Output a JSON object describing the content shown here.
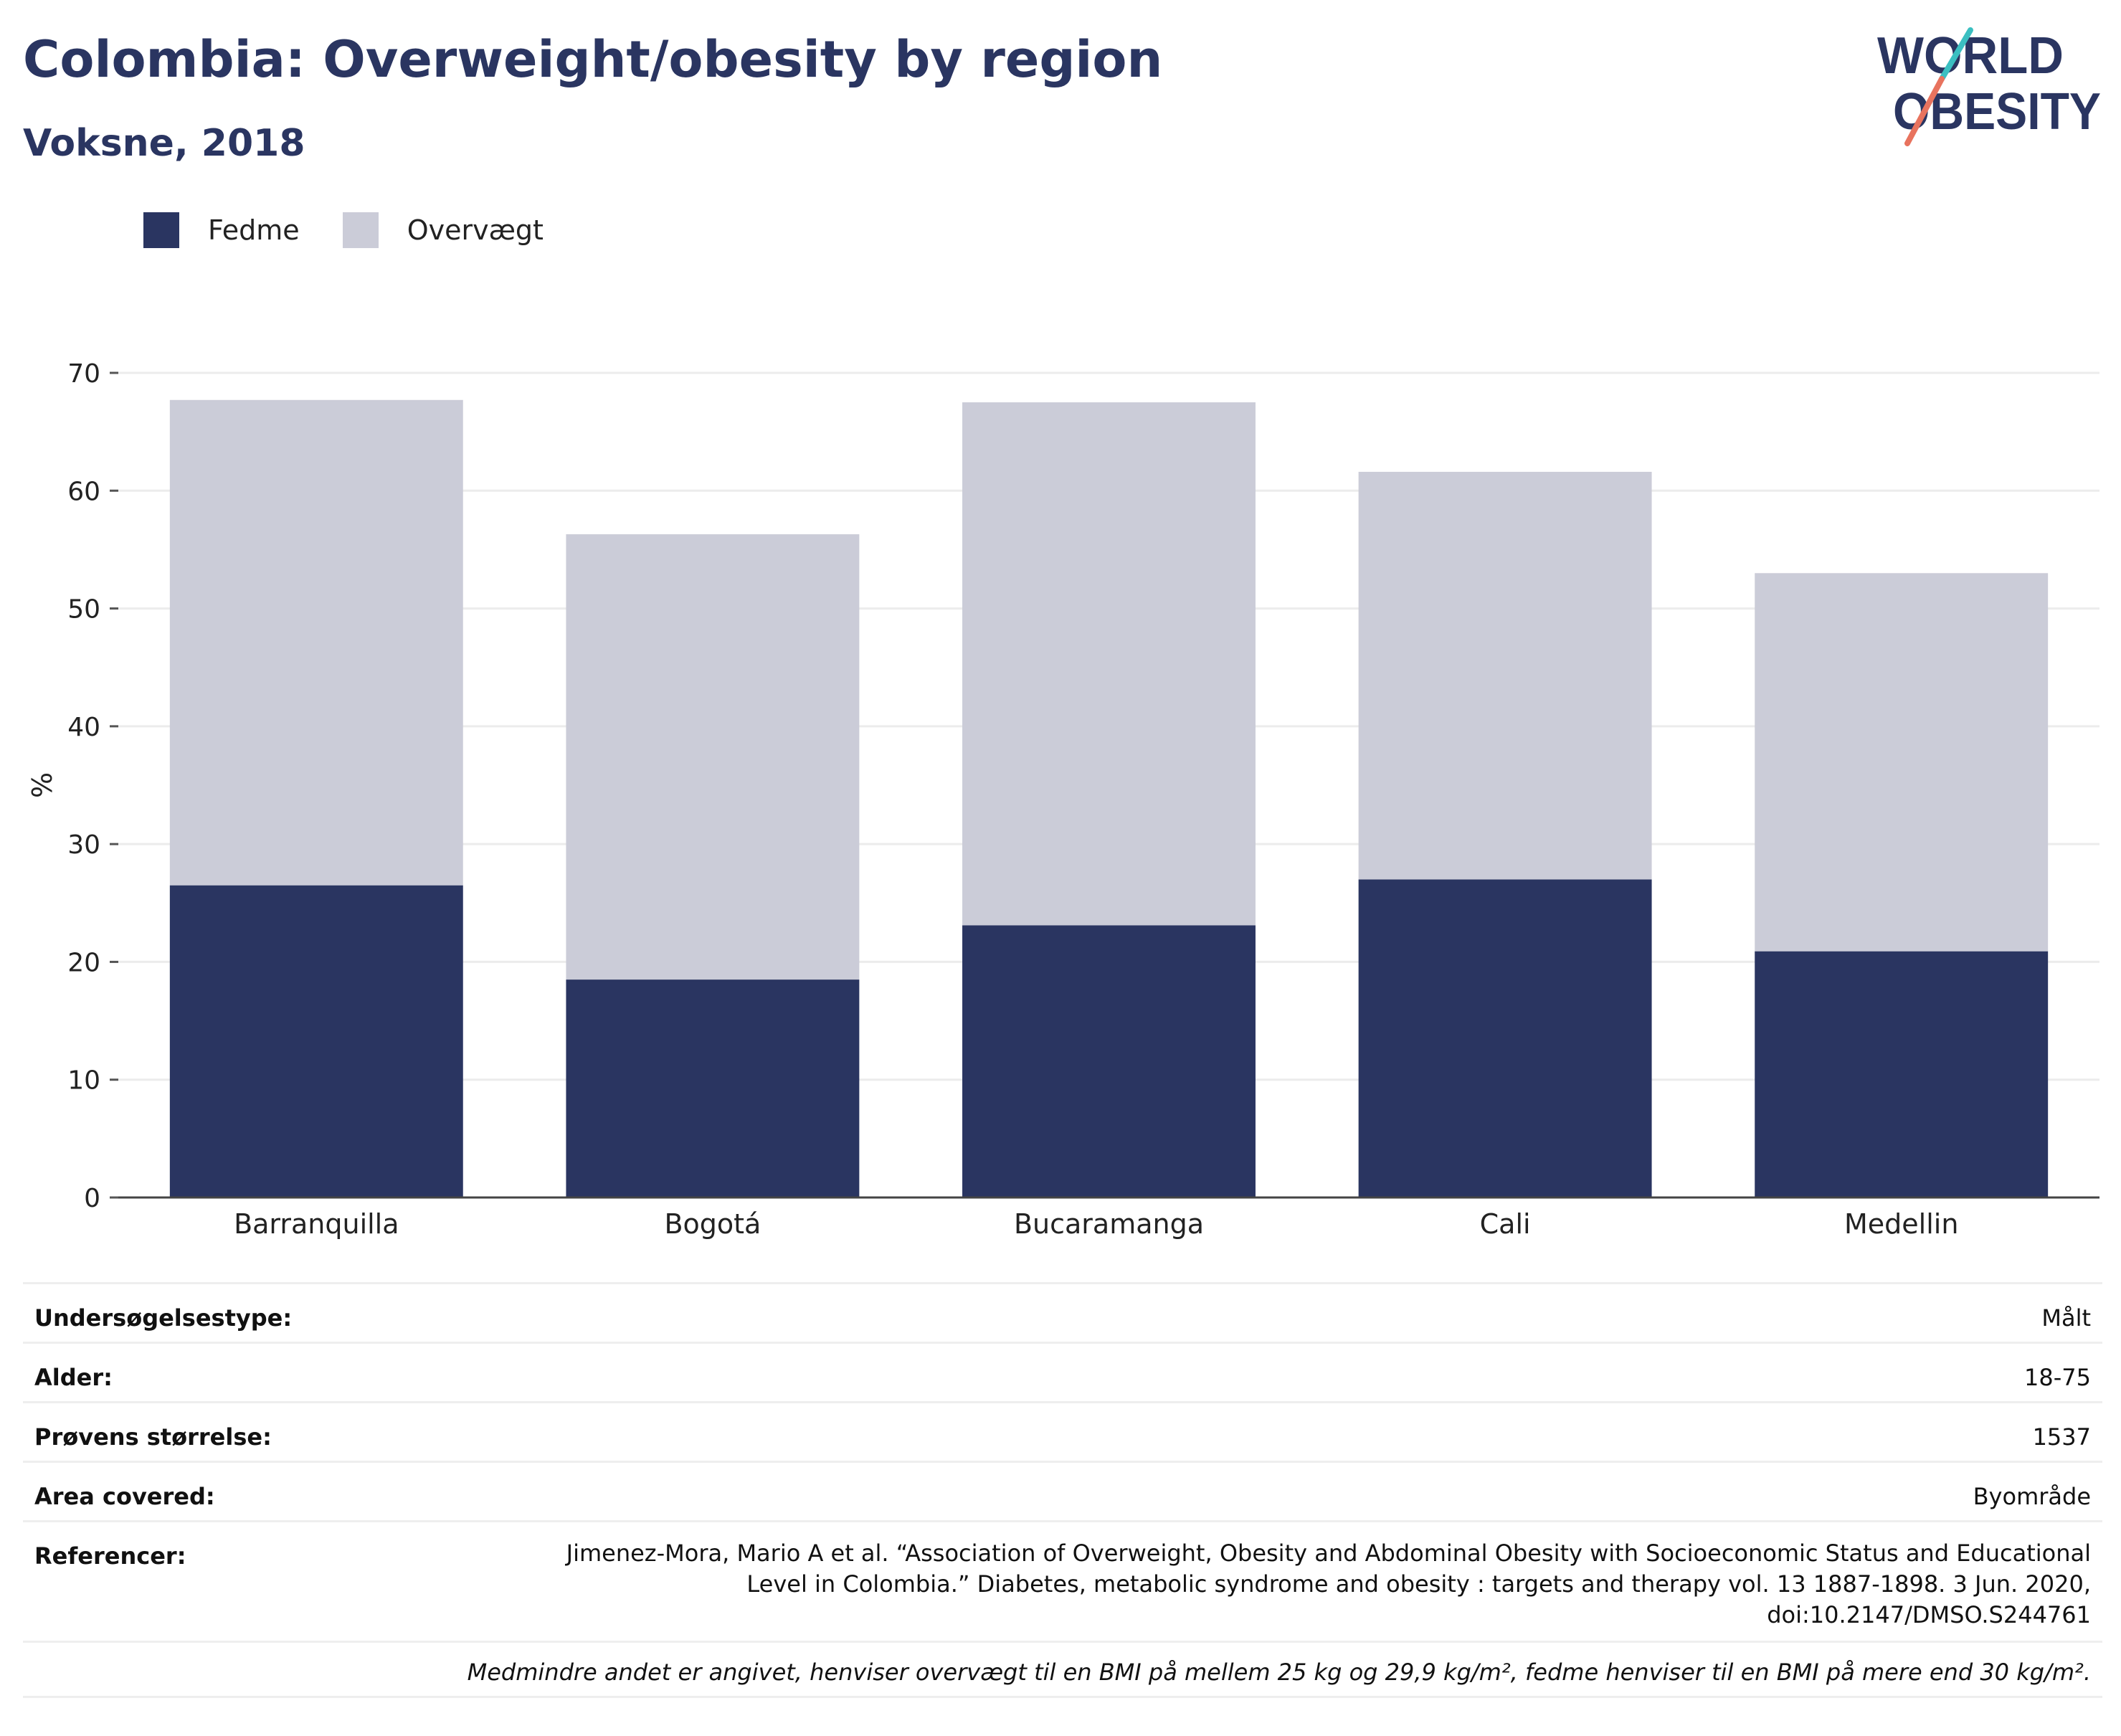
{
  "title": "Colombia: Overweight/obesity by region",
  "subtitle": "Voksne, 2018",
  "logo": {
    "line1": "WORLD",
    "line2": "OBESITY"
  },
  "colors": {
    "fedme": "#2a3561",
    "overvaegt": "#cbccd8",
    "title": "#2a3561",
    "logo_teal": "#3bbfc1",
    "logo_coral": "#e8735e"
  },
  "chart_data": {
    "type": "bar",
    "stacked": true,
    "categories": [
      "Barranquilla",
      "Bogotá",
      "Bucaramanga",
      "Cali",
      "Medellin"
    ],
    "series": [
      {
        "name": "Fedme",
        "values": [
          26.5,
          18.5,
          23.1,
          27.0,
          20.9
        ]
      },
      {
        "name": "Overvægt",
        "values": [
          41.2,
          37.8,
          44.4,
          34.6,
          32.1
        ]
      }
    ],
    "ylabel": "%",
    "ylim": [
      0,
      70
    ],
    "yticks": [
      0,
      10,
      20,
      30,
      40,
      50,
      60,
      70
    ],
    "grid": true,
    "legend_position": "top-left"
  },
  "meta": [
    {
      "label": "Undersøgelsestype:",
      "value": "Målt"
    },
    {
      "label": "Alder:",
      "value": "18-75"
    },
    {
      "label": "Prøvens størrelse:",
      "value": "1537"
    },
    {
      "label": "Area covered:",
      "value": "Byområde"
    }
  ],
  "references": {
    "label": "Referencer:",
    "value": "Jimenez-Mora, Mario A et al. “Association of Overweight, Obesity and Abdominal Obesity with Socioeconomic Status and Educational Level in Colombia.” Diabetes, metabolic syndrome and obesity : targets and therapy vol. 13 1887-1898. 3 Jun. 2020, doi:10.2147/DMSO.S244761"
  },
  "footnote": "Medmindre andet er angivet, henviser overvægt til en BMI på mellem 25 kg og 29,9 kg/m², fedme henviser til en BMI på mere end 30 kg/m²."
}
